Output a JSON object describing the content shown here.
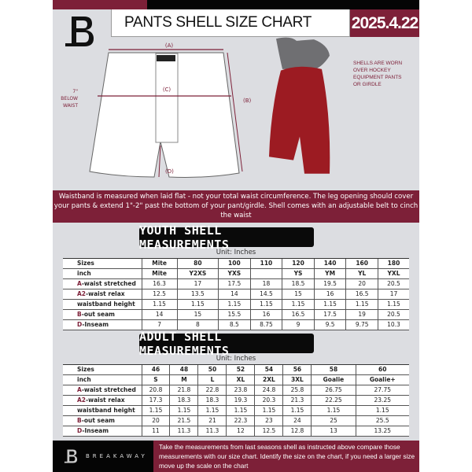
{
  "header": {
    "title": "PANTS SHELL SIZE CHART",
    "date": "2025.4.22",
    "logo_letter": "B"
  },
  "diagram": {
    "label_a": "(A)",
    "label_b": "(B)",
    "label_c": "(C)",
    "label_d": "(D)",
    "below_waist_note": "7\" BELOW WAIST",
    "shell_note": "SHELLS ARE WORN OVER HOCKEY EQUIPMENT PANTS OR GIRDLE"
  },
  "banner": {
    "text": "Waistband is measured when laid flat - not your total waist circumference. The leg opening should cover your pants & extend 1\"-2\" past the bottom of your pant/girdle. Shell comes with an adjustable belt to cinch the waist"
  },
  "youth": {
    "heading": "YOUTH SHELL MEASUREMENTS",
    "unit": "Unit: Inches",
    "rows": [
      {
        "prefix": "",
        "label": "Sizes",
        "values": [
          "Mite",
          "80",
          "100",
          "110",
          "120",
          "140",
          "160",
          "180"
        ]
      },
      {
        "prefix": "",
        "label": "inch",
        "values": [
          "Mite",
          "Y2XS",
          "YXS",
          "",
          "YS",
          "YM",
          "YL",
          "YXL"
        ]
      },
      {
        "prefix": "A",
        "label": "-waist stretched",
        "values": [
          "16.3",
          "17",
          "17.5",
          "18",
          "18.5",
          "19.5",
          "20",
          "20.5"
        ]
      },
      {
        "prefix": "A2",
        "label": "-waist relax",
        "values": [
          "12.5",
          "13.5",
          "14",
          "14.5",
          "15",
          "16",
          "16.5",
          "17"
        ]
      },
      {
        "prefix": "",
        "label": "waistband height",
        "values": [
          "1.15",
          "1.15",
          "1.15",
          "1.15",
          "1.15",
          "1.15",
          "1.15",
          "1.15"
        ]
      },
      {
        "prefix": "B",
        "label": "-out seam",
        "values": [
          "14",
          "15",
          "15.5",
          "16",
          "16.5",
          "17.5",
          "19",
          "20.5"
        ]
      },
      {
        "prefix": "D",
        "label": "-Inseam",
        "values": [
          "7",
          "8",
          "8.5",
          "8.75",
          "9",
          "9.5",
          "9.75",
          "10.3"
        ]
      }
    ]
  },
  "adult": {
    "heading": "ADULT SHELL MEASUREMENTS",
    "unit": "Unit: Inches",
    "rows": [
      {
        "prefix": "",
        "label": "Sizes",
        "values": [
          "46",
          "48",
          "50",
          "52",
          "54",
          "56",
          "58",
          "60"
        ]
      },
      {
        "prefix": "",
        "label": "inch",
        "values": [
          "S",
          "M",
          "L",
          "XL",
          "2XL",
          "3XL",
          "Goalie",
          "Goalie+"
        ]
      },
      {
        "prefix": "A",
        "label": "-waist stretched",
        "values": [
          "20.8",
          "21.8",
          "22.8",
          "23.8",
          "24.8",
          "25.8",
          "26.75",
          "27.75"
        ]
      },
      {
        "prefix": "A2",
        "label": "-waist relax",
        "values": [
          "17.3",
          "18.3",
          "18.3",
          "19.3",
          "20.3",
          "21.3",
          "22.25",
          "23.25"
        ]
      },
      {
        "prefix": "",
        "label": "waistband height",
        "values": [
          "1.15",
          "1.15",
          "1.15",
          "1.15",
          "1.15",
          "1.15",
          "1.15",
          "1.15"
        ]
      },
      {
        "prefix": "B",
        "label": "-out seam",
        "values": [
          "20",
          "21.5",
          "21",
          "22.3",
          "23",
          "24",
          "25",
          "25.5"
        ]
      },
      {
        "prefix": "D",
        "label": "-Inseam",
        "values": [
          "11",
          "11.3",
          "11.3",
          "12",
          "12.5",
          "12.8",
          "13",
          "13.25"
        ]
      }
    ]
  },
  "footer": {
    "brand": "BREAKAWAY",
    "text": "Take the measurements from last seasons shell as instructed above compare those measurements  with our size chart. Identify the size on the chart, if you need a larger size move up the scale on the chart"
  },
  "colors": {
    "brand": "#7d2038",
    "dark": "#050505",
    "background": "#dcdde1"
  }
}
